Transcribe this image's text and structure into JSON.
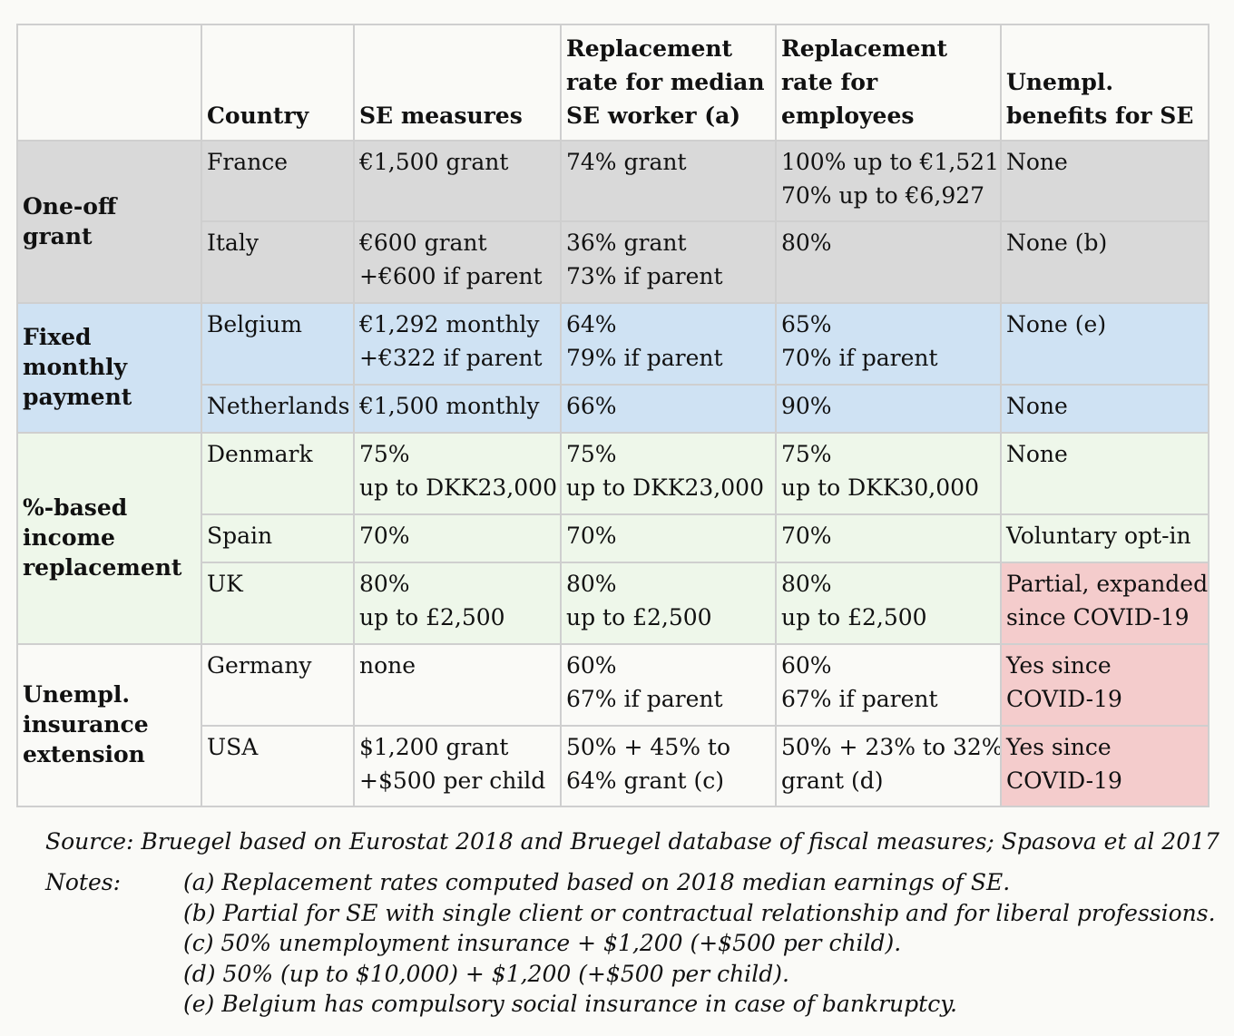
{
  "headers": {
    "group": "",
    "country": "Country",
    "se_measures": "SE measures",
    "rr_se": [
      "Replacement",
      "rate for median",
      "SE worker (a)"
    ],
    "rr_emp": [
      "Replacement",
      "rate for",
      "employees"
    ],
    "unemp": [
      "Unempl.",
      "benefits for SE"
    ]
  },
  "groups": {
    "oneoff": [
      "One-off",
      "grant"
    ],
    "fixed": [
      "Fixed",
      "monthly",
      "payment"
    ],
    "pct": [
      "%-based",
      "income",
      "replacement"
    ],
    "unempl": [
      "Unempl.",
      "insurance",
      "extension"
    ]
  },
  "rows": [
    {
      "country": "France",
      "se": [
        "€1,500 grant"
      ],
      "rr_se": [
        "74% grant"
      ],
      "rr_emp": [
        "100% up to €1,521",
        "70% up to €6,927"
      ],
      "unemp": [
        "None"
      ]
    },
    {
      "country": "Italy",
      "se": [
        "€600 grant",
        "+€600 if parent"
      ],
      "rr_se": [
        "36% grant",
        "73% if parent"
      ],
      "rr_emp": [
        "80%"
      ],
      "unemp": [
        "None (b)"
      ]
    },
    {
      "country": "Belgium",
      "se": [
        "€1,292 monthly",
        "+€322 if parent"
      ],
      "rr_se": [
        "64%",
        "79% if parent"
      ],
      "rr_emp": [
        "65%",
        "70% if parent"
      ],
      "unemp": [
        "None (e)"
      ]
    },
    {
      "country": "Netherlands",
      "se": [
        "€1,500 monthly"
      ],
      "rr_se": [
        "66%"
      ],
      "rr_emp": [
        "90%"
      ],
      "unemp": [
        "None"
      ]
    },
    {
      "country": "Denmark",
      "se": [
        "75%",
        "up to DKK23,000"
      ],
      "rr_se": [
        "75%",
        "up to DKK23,000"
      ],
      "rr_emp": [
        "75%",
        "up to DKK30,000"
      ],
      "unemp": [
        "None"
      ]
    },
    {
      "country": "Spain",
      "se": [
        "70%"
      ],
      "rr_se": [
        "70%"
      ],
      "rr_emp": [
        "70%"
      ],
      "unemp": [
        "Voluntary opt-in"
      ]
    },
    {
      "country": "UK",
      "se": [
        "80%",
        "up to £2,500"
      ],
      "rr_se": [
        "80%",
        "up to £2,500"
      ],
      "rr_emp": [
        "80%",
        "up to £2,500"
      ],
      "unemp": [
        "Partial, expanded",
        "since COVID-19"
      ]
    },
    {
      "country": "Germany",
      "se": [
        "none"
      ],
      "rr_se": [
        "60%",
        "67% if parent"
      ],
      "rr_emp": [
        "60%",
        "67% if parent"
      ],
      "unemp": [
        "Yes since",
        "COVID-19"
      ]
    },
    {
      "country": "USA",
      "se": [
        "$1,200 grant",
        "+$500 per child"
      ],
      "rr_se": [
        "50% + 45% to",
        "64% grant (c)"
      ],
      "rr_emp": [
        "50% + 23% to 32%",
        "grant (d)"
      ],
      "unemp": [
        "Yes since",
        "COVID-19"
      ]
    }
  ],
  "colors": {
    "grey": "#d9d9d9",
    "blue": "#cfe2f3",
    "green": "#eef7ea",
    "pink": "#f4cccc"
  },
  "source": "Source: Bruegel based on Eurostat 2018 and Bruegel database of fiscal measures; Spasova et al 2017",
  "notes_label": "Notes:",
  "notes": [
    "(a) Replacement rates computed based on 2018 median earnings of SE.",
    "(b) Partial for SE with single client or contractual relationship and for liberal professions.",
    "(c) 50% unemployment insurance + $1,200 (+$500 per child).",
    "(d) 50% (up to $10,000) + $1,200 (+$500 per child).",
    "(e) Belgium has compulsory social insurance in case of bankruptcy."
  ]
}
